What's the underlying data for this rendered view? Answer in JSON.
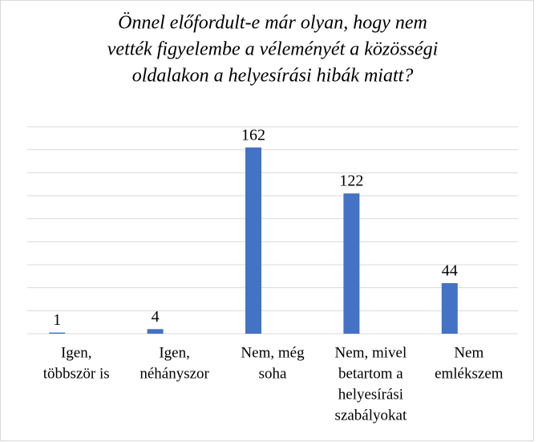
{
  "chart_data": {
    "type": "bar",
    "title": [
      "Önnel előfordult-e már olyan, hogy nem",
      "vették figyelembe a véleményét a közösségi",
      "oldalakon a helyesírási hibák miatt?"
    ],
    "categories": [
      [
        "Igen,",
        "többször is"
      ],
      [
        "Igen,",
        "néhányszor"
      ],
      [
        "Nem, még",
        "soha"
      ],
      [
        "Nem, mivel",
        "betartom a",
        "helyesírási",
        "szabályokat"
      ],
      [
        "Nem",
        "emlékszem"
      ]
    ],
    "values": [
      1,
      4,
      162,
      122,
      44
    ],
    "color": "#4472c4",
    "ylim": [
      0,
      180
    ],
    "yticks": [
      0,
      20,
      40,
      60,
      80,
      100,
      120,
      140,
      160,
      180
    ],
    "grid": true
  }
}
